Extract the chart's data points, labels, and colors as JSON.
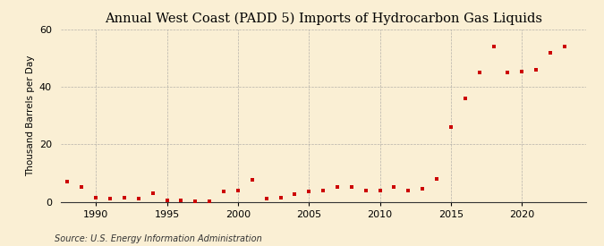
{
  "title": "Annual West Coast (PADD 5) Imports of Hydrocarbon Gas Liquids",
  "ylabel": "Thousand Barrels per Day",
  "source": "Source: U.S. Energy Information Administration",
  "background_color": "#faefd4",
  "plot_bg_color": "#faefd4",
  "marker_color": "#cc0000",
  "years": [
    1988,
    1989,
    1990,
    1991,
    1992,
    1993,
    1994,
    1995,
    1996,
    1997,
    1998,
    1999,
    2000,
    2001,
    2002,
    2003,
    2004,
    2005,
    2006,
    2007,
    2008,
    2009,
    2010,
    2011,
    2012,
    2013,
    2014,
    2015,
    2016,
    2017,
    2018,
    2019,
    2020,
    2021,
    2022,
    2023
  ],
  "values": [
    7.0,
    5.0,
    1.5,
    1.0,
    1.5,
    1.0,
    3.0,
    0.5,
    0.5,
    0.3,
    0.2,
    3.5,
    4.0,
    7.5,
    1.0,
    1.5,
    2.5,
    3.5,
    4.0,
    5.0,
    5.0,
    4.0,
    4.0,
    5.0,
    4.0,
    4.5,
    8.0,
    26.0,
    36.0,
    45.0,
    54.0,
    45.0,
    45.5,
    46.0,
    52.0,
    54.0
  ],
  "xlim": [
    1987.5,
    2024.5
  ],
  "ylim": [
    0,
    60
  ],
  "yticks": [
    0,
    20,
    40,
    60
  ],
  "xticks": [
    1990,
    1995,
    2000,
    2005,
    2010,
    2015,
    2020
  ],
  "grid_color": "#999999",
  "title_fontsize": 10.5,
  "label_fontsize": 7.5,
  "tick_fontsize": 8,
  "source_fontsize": 7,
  "marker_size": 10
}
